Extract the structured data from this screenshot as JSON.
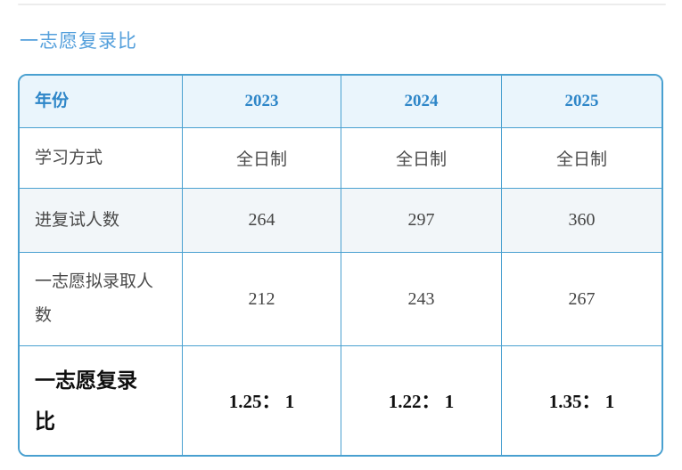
{
  "title": "一志愿复录比",
  "colors": {
    "title_blue": "#55a0dc",
    "table_border_blue": "#49a0d0",
    "header_bg": "#eaf5fc",
    "header_text_blue": "#2e86c8",
    "stripe_row_bg": "#f2f6f9",
    "body_text_gray": "#4a4a4a",
    "strong_text_black": "#0f0f0f",
    "top_divider_gray": "#ececec"
  },
  "table": {
    "header": [
      "年份",
      "2023",
      "2024",
      "2025"
    ],
    "rows": [
      {
        "label": "学习方式",
        "values": [
          "全日制",
          "全日制",
          "全日制"
        ]
      },
      {
        "label": "进复试人数",
        "values": [
          "264",
          "297",
          "360"
        ]
      },
      {
        "label": "一志愿拟录取人数",
        "values": [
          "212",
          "243",
          "267"
        ]
      },
      {
        "label": "一志愿复录比",
        "values": [
          "1.25： 1",
          "1.22： 1",
          "1.35： 1"
        ]
      }
    ]
  }
}
